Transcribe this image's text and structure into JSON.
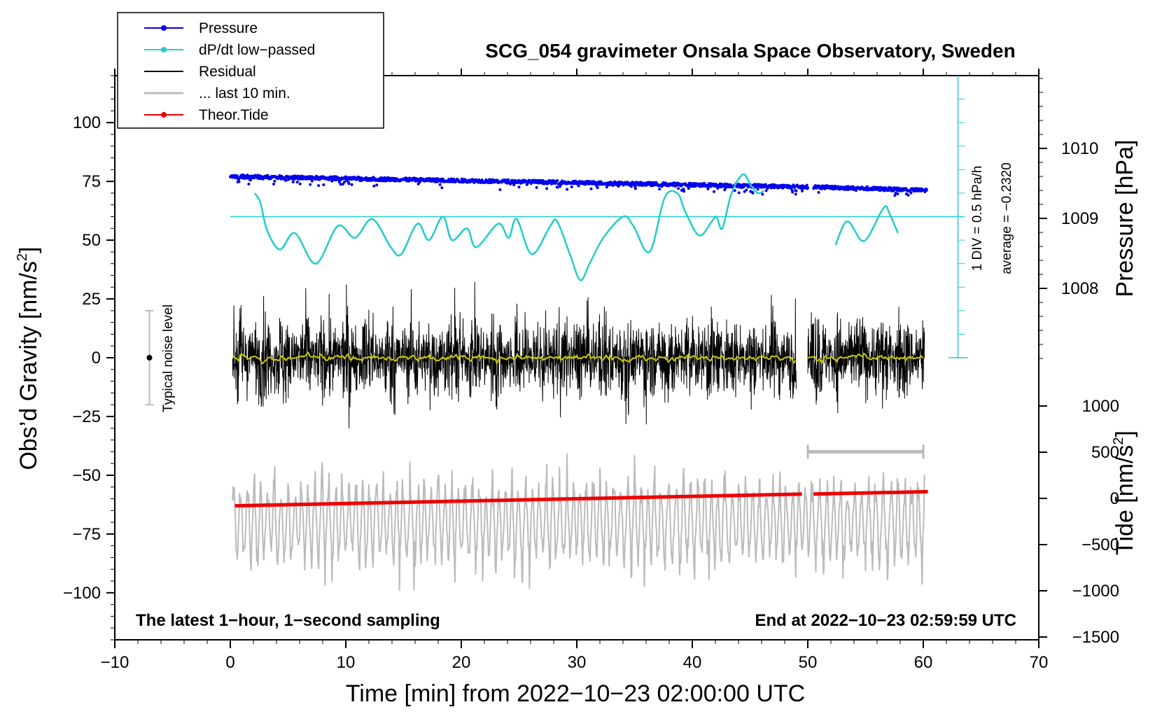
{
  "chart_data": {
    "type": "line",
    "title": "SCG_054 gravimeter Onsala Space Observatory, Sweden",
    "xlabel": "Time [min] from 2022−10−23 02:00:00 UTC",
    "ylabel_left": "Obs’d Gravity [nm/s²]",
    "ylabel_left_main": "Obs’d Gravity [nm/s",
    "ylabel_left_sup": "2",
    "ylabel_left_end": "]",
    "ylabel_right_pressure": "Pressure [hPa]",
    "ylabel_right_tide_main": "Tide [nm/s",
    "ylabel_right_tide_sup": "2",
    "ylabel_right_tide_end": "]",
    "xlim": [
      -10,
      70
    ],
    "ylim": [
      -120,
      120
    ],
    "x_ticks": [
      -10,
      0,
      10,
      20,
      30,
      40,
      50,
      60,
      70
    ],
    "x_tick_labels": [
      "−10",
      "0",
      "10",
      "20",
      "30",
      "40",
      "50",
      "60",
      "70"
    ],
    "y_ticks": [
      -100,
      -75,
      -50,
      -25,
      0,
      25,
      50,
      75,
      100
    ],
    "y_tick_labels": [
      "−100",
      "−75",
      "−50",
      "−25",
      "0",
      "25",
      "50",
      "75",
      "100"
    ],
    "pressure_ticks": [
      1008,
      1009,
      1010
    ],
    "pressure_tick_labels": [
      "1008",
      "1009",
      "1010"
    ],
    "tide_ticks": [
      1000,
      500,
      0,
      -500,
      -1000,
      -1500
    ],
    "tide_tick_labels": [
      "1000",
      "500",
      "0",
      "−500",
      "−1000",
      "−1500"
    ],
    "legend": [
      {
        "label": "Pressure",
        "color": "#0000ee",
        "marker": true
      },
      {
        "label": "dP/dt low−passed",
        "color": "#22cccc",
        "marker": true
      },
      {
        "label": "Residual",
        "color": "#000000",
        "marker": false
      },
      {
        "label": "... last 10 min.",
        "color": "#bbbbbb",
        "marker": false
      },
      {
        "label": "Theor.Tide",
        "color": "#ee0000",
        "marker": true
      }
    ],
    "series": [
      {
        "name": "Pressure",
        "unit": "hPa",
        "segments": [
          [
            0,
            50,
            1009.6,
            1009.45
          ],
          [
            50.5,
            60.3,
            1009.45,
            1009.4
          ]
        ]
      },
      {
        "name": "dP/dt low−passed",
        "unit": "nm/s² plot scale",
        "baseline": 60,
        "points": [
          [
            2.1,
            70
          ],
          [
            2.6,
            66
          ],
          [
            3.2,
            54
          ],
          [
            4.3,
            46
          ],
          [
            5.6,
            53
          ],
          [
            7.4,
            40
          ],
          [
            9.3,
            56
          ],
          [
            10.8,
            51
          ],
          [
            12.3,
            59
          ],
          [
            13.9,
            47
          ],
          [
            14.8,
            44
          ],
          [
            16.2,
            57
          ],
          [
            17.2,
            50
          ],
          [
            18.4,
            60
          ],
          [
            19.2,
            50
          ],
          [
            20.5,
            55
          ],
          [
            21.3,
            47
          ],
          [
            23.2,
            57
          ],
          [
            24.1,
            51
          ],
          [
            24.8,
            59
          ],
          [
            26.1,
            44
          ],
          [
            27.7,
            56
          ],
          [
            28.3,
            58
          ],
          [
            29.4,
            44
          ],
          [
            30.3,
            33
          ],
          [
            31.1,
            40
          ],
          [
            32.3,
            51
          ],
          [
            34.0,
            60
          ],
          [
            34.9,
            56
          ],
          [
            36.3,
            45
          ],
          [
            37.6,
            68
          ],
          [
            38.7,
            70
          ],
          [
            39.4,
            62
          ],
          [
            40.6,
            52
          ],
          [
            41.7,
            58
          ],
          [
            42.1,
            60
          ],
          [
            42.6,
            55
          ],
          [
            43.4,
            70
          ],
          [
            44.4,
            78
          ],
          [
            45.1,
            73
          ],
          [
            45.7,
            70
          ],
          [
            46.2,
            71
          ]
        ],
        "points2": [
          [
            52.4,
            48
          ],
          [
            53.4,
            58
          ],
          [
            54.6,
            50
          ],
          [
            55.3,
            52
          ],
          [
            56.6,
            64
          ],
          [
            57.1,
            61
          ],
          [
            57.8,
            53
          ]
        ]
      },
      {
        "name": "Residual",
        "unit": "nm/s²",
        "segments": [
          [
            0.2,
            49
          ],
          [
            50,
            60.1
          ]
        ],
        "typical_amplitude": 25
      },
      {
        "name": "... last 10 min.",
        "unit": "nm/s²",
        "segments": [
          [
            0.2,
            60.1
          ]
        ],
        "center": -70
      },
      {
        "name": "Theor.Tide",
        "unit": "nm/s²",
        "segments": [
          [
            0.4,
            49.5,
            -63,
            -58
          ],
          [
            50.5,
            60.4,
            -58,
            -57
          ]
        ]
      }
    ],
    "annotations": {
      "noise_label": "Typical noise level",
      "noise_range": [
        -20,
        20
      ],
      "noise_x": -7,
      "scale_label_1": "1 DIV = 0.5 hPa/h",
      "scale_label_2": "average = −0.2320",
      "bottom_left": "The latest 1−hour, 1−second sampling",
      "bottom_right": "End at 2022−10−23 02:59:59 UTC",
      "last10_range": [
        50,
        60
      ]
    }
  },
  "colors": {
    "pressure": "#0000ee",
    "dpdt": "#22cccc",
    "residual": "#000000",
    "residual_smooth": "#cccc00",
    "last10": "#bbbbbb",
    "tide": "#ee0000",
    "noise_bar": "#bbbbbb"
  }
}
